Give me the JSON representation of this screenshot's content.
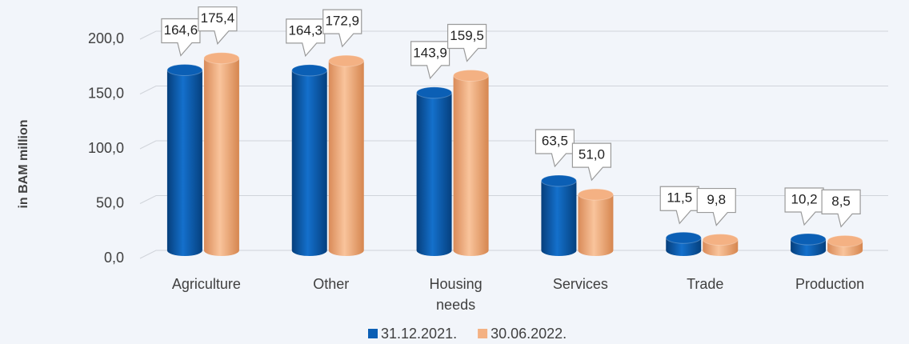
{
  "chart_data": {
    "type": "bar3d",
    "y_label": "in BAM million",
    "categories": [
      "Agriculture",
      "Other",
      "Housing needs",
      "Services",
      "Trade",
      "Production"
    ],
    "series": [
      {
        "name": "31.12.2021.",
        "color": "#0b5fb5",
        "values": [
          164.6,
          164.3,
          143.9,
          63.5,
          11.5,
          10.2
        ],
        "value_labels": [
          "164,6",
          "164,3",
          "143,9",
          "63,5",
          "11,5",
          "10,2"
        ]
      },
      {
        "name": "30.06.2022.",
        "color": "#f4b183",
        "values": [
          175.4,
          172.9,
          159.5,
          51.0,
          9.8,
          8.5
        ],
        "value_labels": [
          "175,4",
          "172,9",
          "159,5",
          "51,0",
          "9,8",
          "8,5"
        ]
      }
    ],
    "ylim": [
      0,
      200
    ],
    "yticks": [
      {
        "value": 0,
        "label": "0,0"
      },
      {
        "value": 50,
        "label": "50,0"
      },
      {
        "value": 100,
        "label": "100,0"
      },
      {
        "value": 150,
        "label": "150,0"
      },
      {
        "value": 200,
        "label": "200,0"
      }
    ],
    "grid": true,
    "legend": "bottom"
  }
}
